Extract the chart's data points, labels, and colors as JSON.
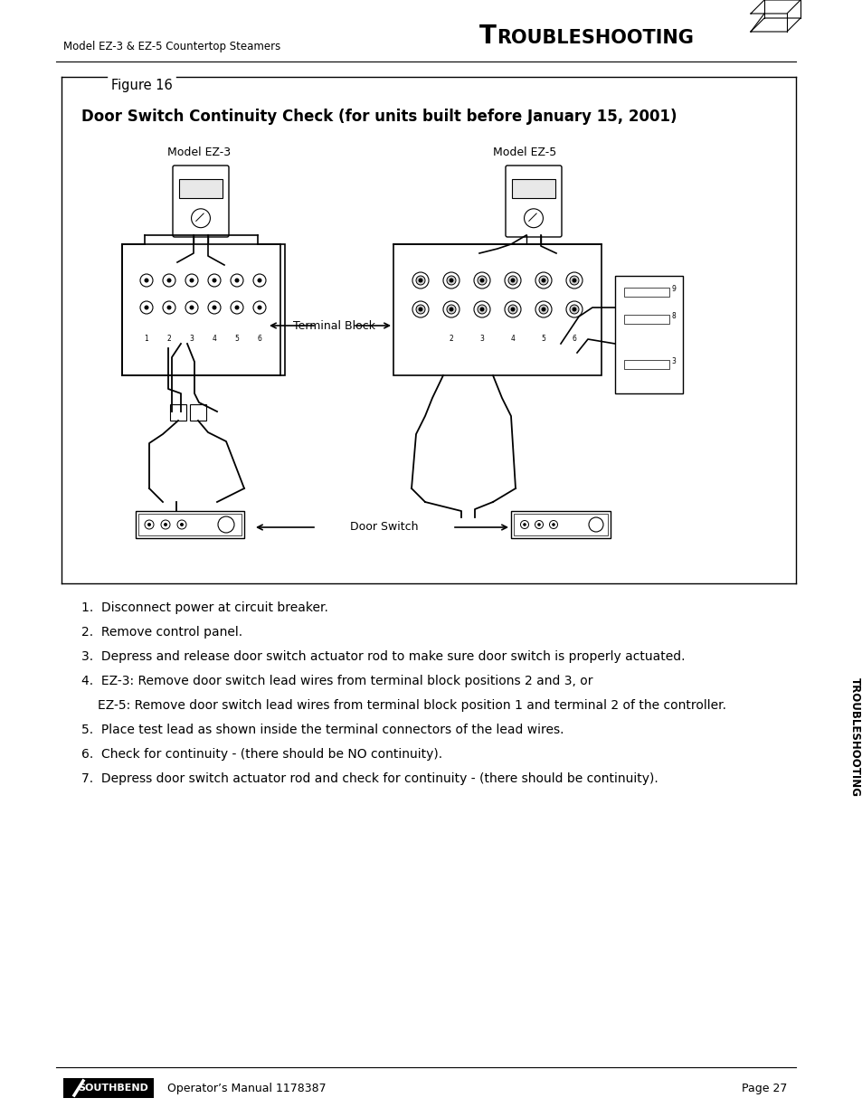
{
  "bg_color": "#ffffff",
  "header_left": "Model EZ-3 & EZ-5 Countertop Steamers",
  "header_right": "Troubleshooting",
  "figure_label": "Figure 16",
  "figure_title": "Door Switch Continuity Check (for units built before January 15, 2001)",
  "footer_logo": "SOUTHBEND",
  "footer_manual": "Operator’s Manual 1178387",
  "footer_page": "Page 27",
  "side_label": "TROUBLESHOOTING",
  "diagram_label_left": "Model EZ-3",
  "diagram_label_right": "Model EZ-5",
  "terminal_block_label": "Terminal Block",
  "door_switch_label": "Door Switch",
  "steps": [
    "1.  Disconnect power at circuit breaker.",
    "2.  Remove control panel.",
    "3.  Depress and release door switch actuator rod to make sure door switch is properly actuated.",
    "4.  EZ-3: Remove door switch lead wires from terminal block positions 2 and 3, or",
    "      EZ-5: Remove door switch lead wires from terminal block position 1 and terminal 2 of the controller.",
    "5.  Place test lead as shown inside the terminal connectors of the lead wires.",
    "6.  Check for continuity - (there should be NO continuity).",
    "7.  Depress door switch actuator rod and check for continuity - (there should be continuity)."
  ]
}
